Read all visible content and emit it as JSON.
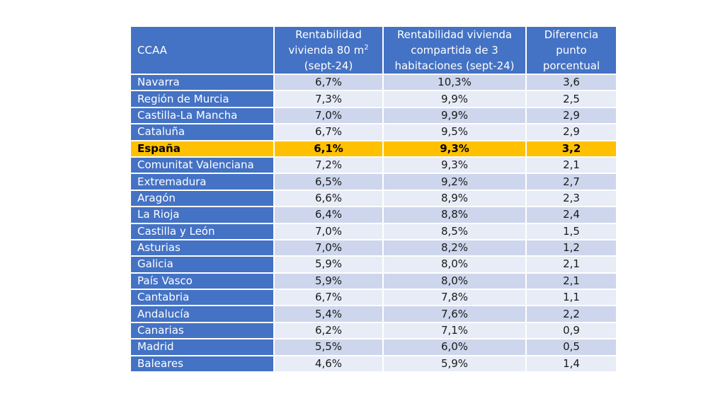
{
  "table": {
    "headers": {
      "region": "CCAA",
      "col1_line1": "Rentabilidad",
      "col1_line2": "vivienda 80 m",
      "col1_sup": "2",
      "col1_line3": "(sept-24)",
      "col2_line1": "Rentabilidad vivienda",
      "col2_line2": "compartida de 3",
      "col2_line3": "habitaciones (sept-24)",
      "col3_line1": "Diferencia",
      "col3_line2": "punto",
      "col3_line3": "porcentual"
    },
    "rows": [
      {
        "region": "Navarra",
        "v1": "6,7%",
        "v2": "10,3%",
        "diff": "3,6"
      },
      {
        "region": "Región de Murcia",
        "v1": "7,3%",
        "v2": "9,9%",
        "diff": "2,5"
      },
      {
        "region": "Castilla-La Mancha",
        "v1": "7,0%",
        "v2": "9,9%",
        "diff": "2,9"
      },
      {
        "region": "Cataluña",
        "v1": "6,7%",
        "v2": "9,5%",
        "diff": "2,9"
      },
      {
        "region": "España",
        "v1": "6,1%",
        "v2": "9,3%",
        "diff": "3,2",
        "highlight": true
      },
      {
        "region": "Comunitat Valenciana",
        "v1": "7,2%",
        "v2": "9,3%",
        "diff": "2,1"
      },
      {
        "region": "Extremadura",
        "v1": "6,5%",
        "v2": "9,2%",
        "diff": "2,7"
      },
      {
        "region": "Aragón",
        "v1": "6,6%",
        "v2": "8,9%",
        "diff": "2,3"
      },
      {
        "region": "La Rioja",
        "v1": "6,4%",
        "v2": "8,8%",
        "diff": "2,4"
      },
      {
        "region": "Castilla y León",
        "v1": "7,0%",
        "v2": "8,5%",
        "diff": "1,5"
      },
      {
        "region": "Asturias",
        "v1": "7,0%",
        "v2": "8,2%",
        "diff": "1,2"
      },
      {
        "region": "Galicia",
        "v1": "5,9%",
        "v2": "8,0%",
        "diff": "2,1"
      },
      {
        "region": "País Vasco",
        "v1": "5,9%",
        "v2": "8,0%",
        "diff": "2,1"
      },
      {
        "region": "Cantabria",
        "v1": "6,7%",
        "v2": "7,8%",
        "diff": "1,1"
      },
      {
        "region": "Andalucía",
        "v1": "5,4%",
        "v2": "7,6%",
        "diff": "2,2"
      },
      {
        "region": "Canarias",
        "v1": "6,2%",
        "v2": "7,1%",
        "diff": "0,9"
      },
      {
        "region": "Madrid",
        "v1": "5,5%",
        "v2": "6,0%",
        "diff": "0,5"
      },
      {
        "region": "Baleares",
        "v1": "4,6%",
        "v2": "5,9%",
        "diff": "1,4"
      }
    ]
  },
  "colors": {
    "header_bg": "#4472c4",
    "row_odd": "#cdd6ec",
    "row_even": "#e8ecf6",
    "highlight": "#ffc000"
  }
}
